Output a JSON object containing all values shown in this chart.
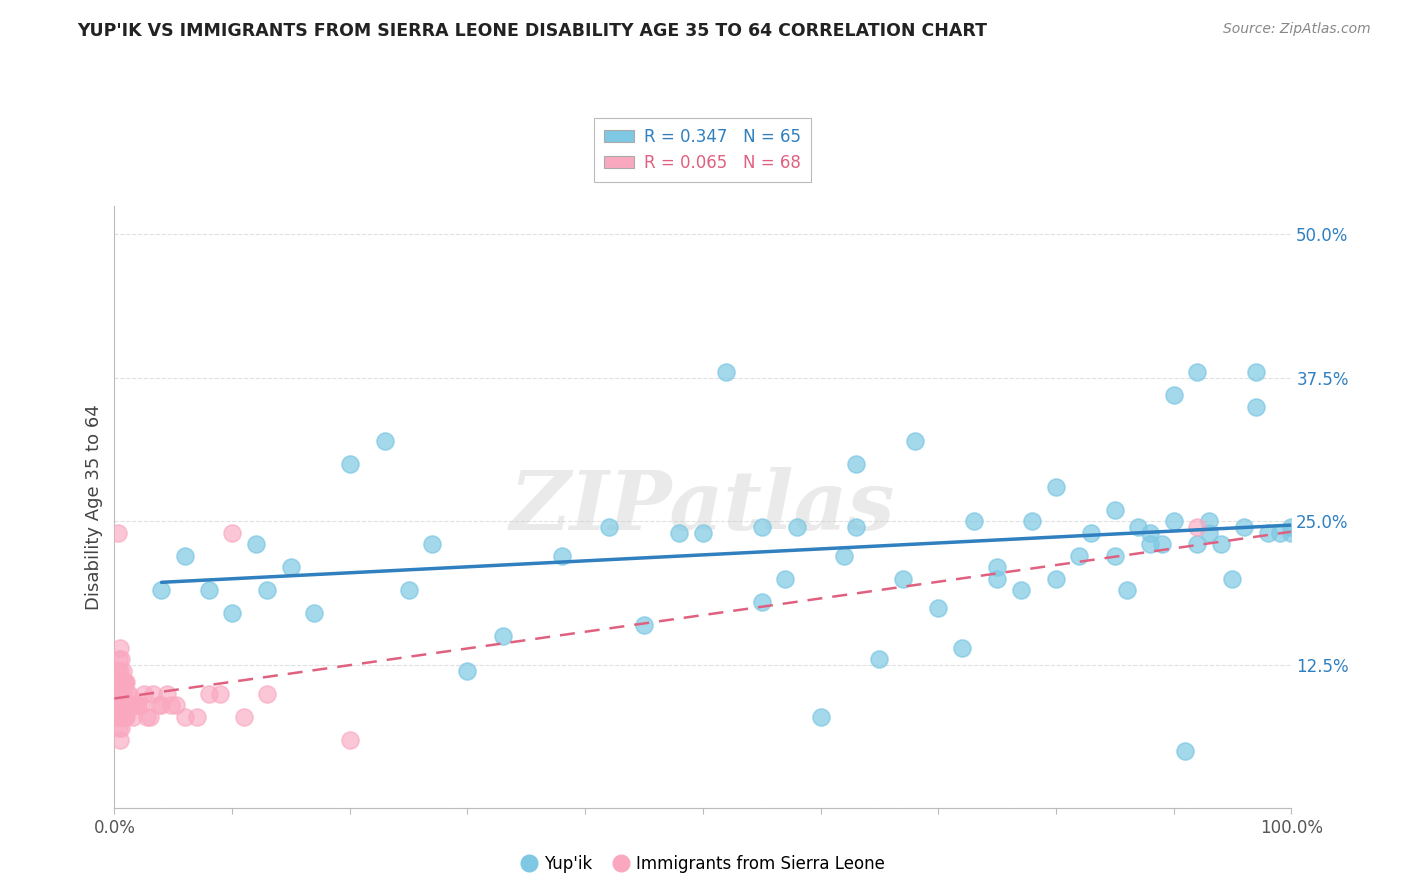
{
  "title": "YUP'IK VS IMMIGRANTS FROM SIERRA LEONE DISABILITY AGE 35 TO 64 CORRELATION CHART",
  "source": "Source: ZipAtlas.com",
  "ylabel": "Disability Age 35 to 64",
  "xlim": [
    0.0,
    1.0
  ],
  "ylim": [
    0.0,
    0.525
  ],
  "yticks": [
    0.0,
    0.125,
    0.25,
    0.375,
    0.5
  ],
  "yticklabels_right": [
    "",
    "12.5%",
    "25.0%",
    "37.5%",
    "50.0%"
  ],
  "blue_R": 0.347,
  "blue_N": 65,
  "pink_R": 0.065,
  "pink_N": 68,
  "blue_color": "#7ec8e3",
  "pink_color": "#f9a8c0",
  "blue_line_color": "#3080c0",
  "pink_line_color": "#e06080",
  "grid_color": "#e0e0e0",
  "background_color": "#ffffff",
  "watermark": "ZIPatlas",
  "blue_scatter_x": [
    0.04,
    0.06,
    0.08,
    0.1,
    0.12,
    0.13,
    0.15,
    0.17,
    0.2,
    0.23,
    0.25,
    0.27,
    0.3,
    0.33,
    0.38,
    0.42,
    0.45,
    0.48,
    0.5,
    0.52,
    0.55,
    0.57,
    0.58,
    0.6,
    0.62,
    0.63,
    0.65,
    0.67,
    0.68,
    0.7,
    0.72,
    0.73,
    0.75,
    0.75,
    0.77,
    0.78,
    0.8,
    0.8,
    0.82,
    0.83,
    0.85,
    0.85,
    0.86,
    0.87,
    0.88,
    0.88,
    0.89,
    0.9,
    0.9,
    0.91,
    0.92,
    0.92,
    0.93,
    0.93,
    0.94,
    0.95,
    0.96,
    0.97,
    0.97,
    0.98,
    0.99,
    1.0,
    1.0,
    0.63,
    0.55
  ],
  "blue_scatter_y": [
    0.19,
    0.22,
    0.19,
    0.17,
    0.23,
    0.19,
    0.21,
    0.17,
    0.3,
    0.32,
    0.19,
    0.23,
    0.12,
    0.15,
    0.22,
    0.245,
    0.16,
    0.24,
    0.24,
    0.38,
    0.18,
    0.2,
    0.245,
    0.08,
    0.22,
    0.3,
    0.13,
    0.2,
    0.32,
    0.175,
    0.14,
    0.25,
    0.2,
    0.21,
    0.19,
    0.25,
    0.2,
    0.28,
    0.22,
    0.24,
    0.26,
    0.22,
    0.19,
    0.245,
    0.24,
    0.23,
    0.23,
    0.25,
    0.36,
    0.05,
    0.23,
    0.38,
    0.25,
    0.24,
    0.23,
    0.2,
    0.245,
    0.38,
    0.35,
    0.24,
    0.24,
    0.245,
    0.24,
    0.245,
    0.245
  ],
  "pink_scatter_x": [
    0.002,
    0.002,
    0.003,
    0.003,
    0.003,
    0.003,
    0.004,
    0.004,
    0.004,
    0.004,
    0.004,
    0.005,
    0.005,
    0.005,
    0.005,
    0.005,
    0.005,
    0.005,
    0.006,
    0.006,
    0.006,
    0.006,
    0.006,
    0.006,
    0.007,
    0.007,
    0.007,
    0.007,
    0.007,
    0.008,
    0.008,
    0.008,
    0.009,
    0.009,
    0.009,
    0.01,
    0.01,
    0.01,
    0.011,
    0.011,
    0.012,
    0.012,
    0.013,
    0.014,
    0.015,
    0.016,
    0.018,
    0.02,
    0.023,
    0.025,
    0.028,
    0.03,
    0.033,
    0.038,
    0.04,
    0.045,
    0.048,
    0.052,
    0.06,
    0.07,
    0.08,
    0.09,
    0.1,
    0.11,
    0.13,
    0.2,
    0.92,
    0.003
  ],
  "pink_scatter_y": [
    0.1,
    0.12,
    0.08,
    0.09,
    0.1,
    0.12,
    0.07,
    0.09,
    0.1,
    0.11,
    0.13,
    0.06,
    0.08,
    0.09,
    0.1,
    0.11,
    0.12,
    0.14,
    0.07,
    0.08,
    0.09,
    0.1,
    0.11,
    0.13,
    0.08,
    0.09,
    0.1,
    0.11,
    0.12,
    0.08,
    0.09,
    0.11,
    0.08,
    0.09,
    0.11,
    0.08,
    0.09,
    0.11,
    0.09,
    0.1,
    0.09,
    0.1,
    0.09,
    0.09,
    0.09,
    0.08,
    0.09,
    0.09,
    0.09,
    0.1,
    0.08,
    0.08,
    0.1,
    0.09,
    0.09,
    0.1,
    0.09,
    0.09,
    0.08,
    0.08,
    0.1,
    0.1,
    0.24,
    0.08,
    0.1,
    0.06,
    0.245,
    0.24
  ]
}
